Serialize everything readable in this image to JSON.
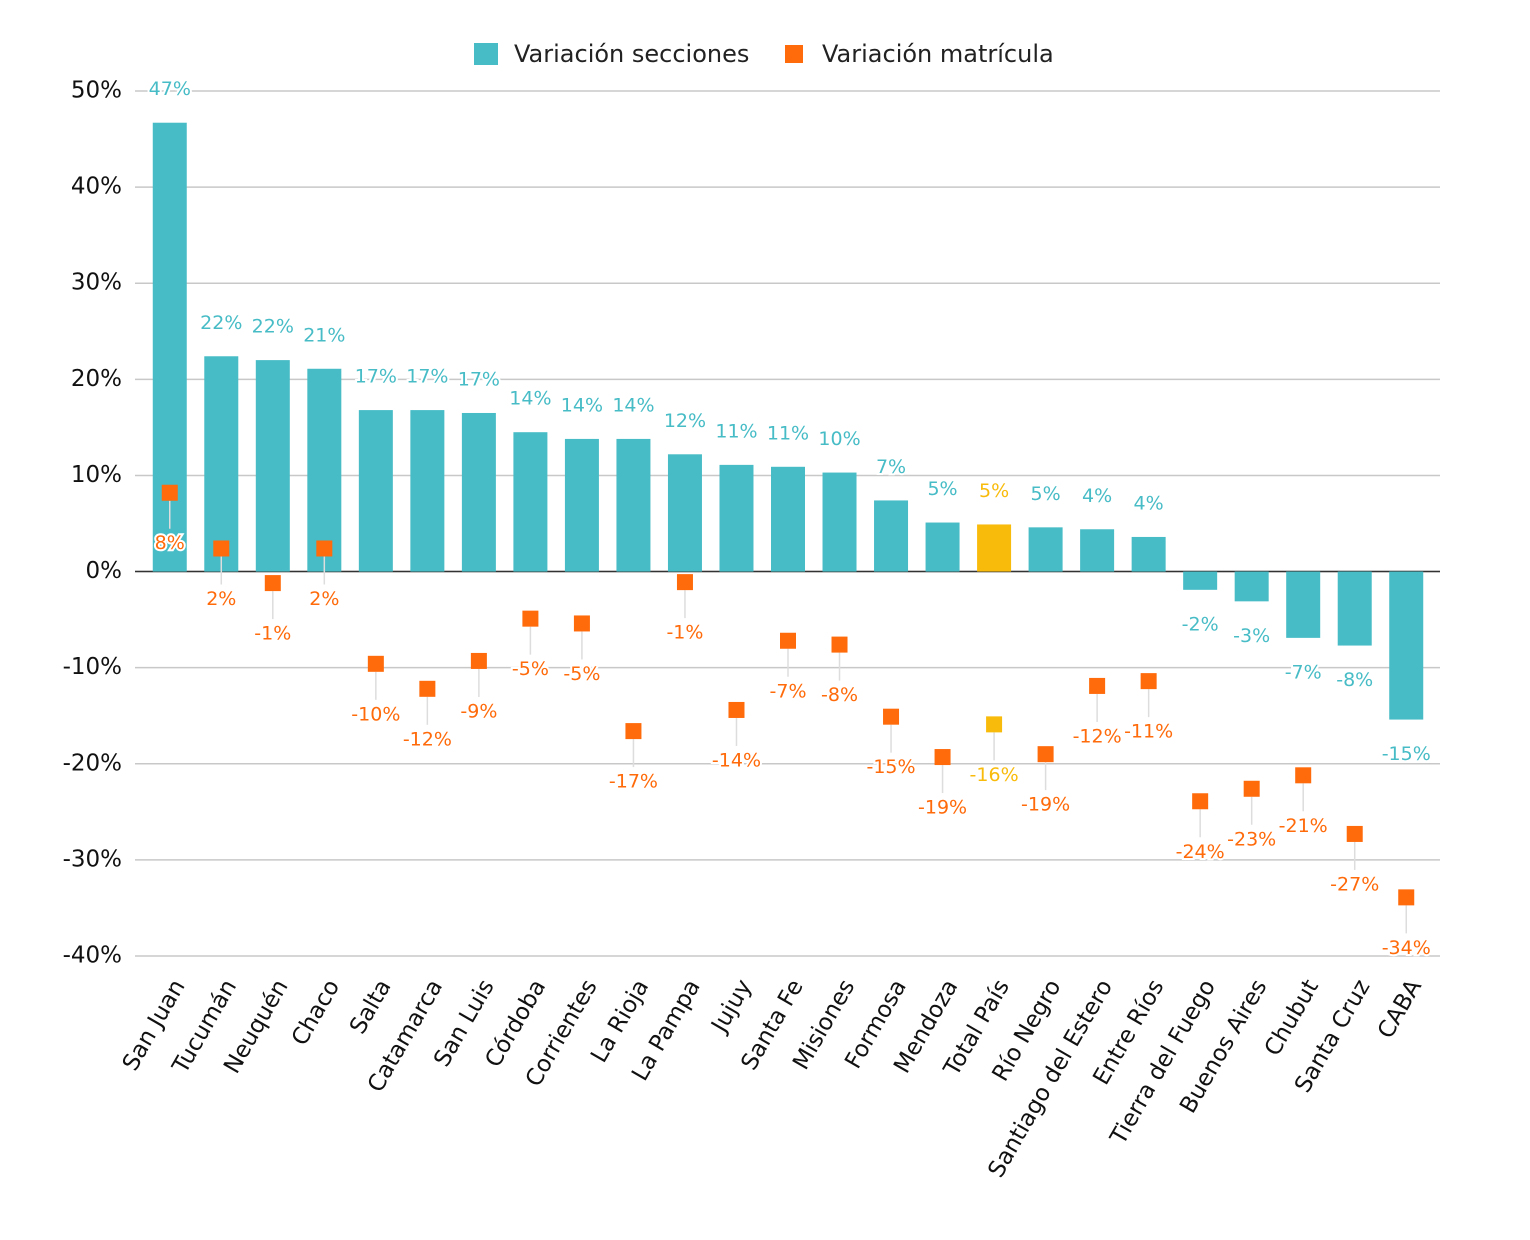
{
  "chart_data": {
    "type": "bar_marker",
    "categories": [
      "San Juan",
      "Tucumán",
      "Neuquén",
      "Chaco",
      "Salta",
      "Catamarca",
      "San Luis",
      "Córdoba",
      "Corrientes",
      "La Rioja",
      "La Pampa",
      "Jujuy",
      "Santa Fe",
      "Misiones",
      "Formosa",
      "Mendoza",
      "Total País",
      "Río Negro",
      "Santiago del Estero",
      "Entre Ríos",
      "Tierra del Fuego",
      "Buenos Aires",
      "Chubut",
      "Santa Cruz",
      "CABA"
    ],
    "series": [
      {
        "name": "Variación secciones",
        "color": "#47bcc6",
        "highlight_color": "#f9bb0b",
        "values": [
          46.7,
          22.4,
          22.0,
          21.1,
          16.8,
          16.8,
          16.5,
          14.5,
          13.8,
          13.8,
          12.2,
          11.1,
          10.9,
          10.3,
          7.4,
          5.1,
          4.9,
          4.6,
          4.4,
          3.6,
          -1.9,
          -3.1,
          -6.9,
          -7.7,
          -15.4
        ],
        "value_labels": [
          "47%",
          "22%",
          "22%",
          "21%",
          "17%",
          "17%",
          "17%",
          "14%",
          "14%",
          "14%",
          "12%",
          "11%",
          "11%",
          "10%",
          "7%",
          "5%",
          "5%",
          "5%",
          "4%",
          "4%",
          "-2%",
          "-3%",
          "-7%",
          "-8%",
          "-15%"
        ]
      },
      {
        "name": "Variación matrícula",
        "color": "#ff6a0a",
        "highlight_color": "#f9bb0b",
        "values": [
          8.2,
          2.4,
          -1.2,
          2.4,
          -9.6,
          -12.2,
          -9.3,
          -4.9,
          -5.4,
          -16.6,
          -1.1,
          -14.4,
          -7.2,
          -7.6,
          -15.1,
          -19.3,
          -15.9,
          -19.0,
          -11.9,
          -11.4,
          -23.9,
          -22.6,
          -21.2,
          -27.3,
          -33.9
        ],
        "value_labels": [
          "8%",
          "2%",
          "-1%",
          "2%",
          "-10%",
          "-12%",
          "-9%",
          "-5%",
          "-5%",
          "-17%",
          "-1%",
          "-14%",
          "-7%",
          "-8%",
          "-15%",
          "-19%",
          "-16%",
          "-19%",
          "-12%",
          "-11%",
          "-24%",
          "-23%",
          "-21%",
          "-27%",
          "-34%"
        ]
      }
    ],
    "highlight_category": "Total País",
    "ylim": [
      -40,
      50
    ],
    "yticks": [
      {
        "value": -40,
        "label": "-40%"
      },
      {
        "value": -30,
        "label": "-30%"
      },
      {
        "value": -20,
        "label": "-20%"
      },
      {
        "value": -10,
        "label": "-10%"
      },
      {
        "value": 0,
        "label": "0%"
      },
      {
        "value": 10,
        "label": "10%"
      },
      {
        "value": 20,
        "label": "20%"
      },
      {
        "value": 30,
        "label": "30%"
      },
      {
        "value": 40,
        "label": "40%"
      },
      {
        "value": 50,
        "label": "50%"
      }
    ],
    "grid": true,
    "legend": "top"
  }
}
